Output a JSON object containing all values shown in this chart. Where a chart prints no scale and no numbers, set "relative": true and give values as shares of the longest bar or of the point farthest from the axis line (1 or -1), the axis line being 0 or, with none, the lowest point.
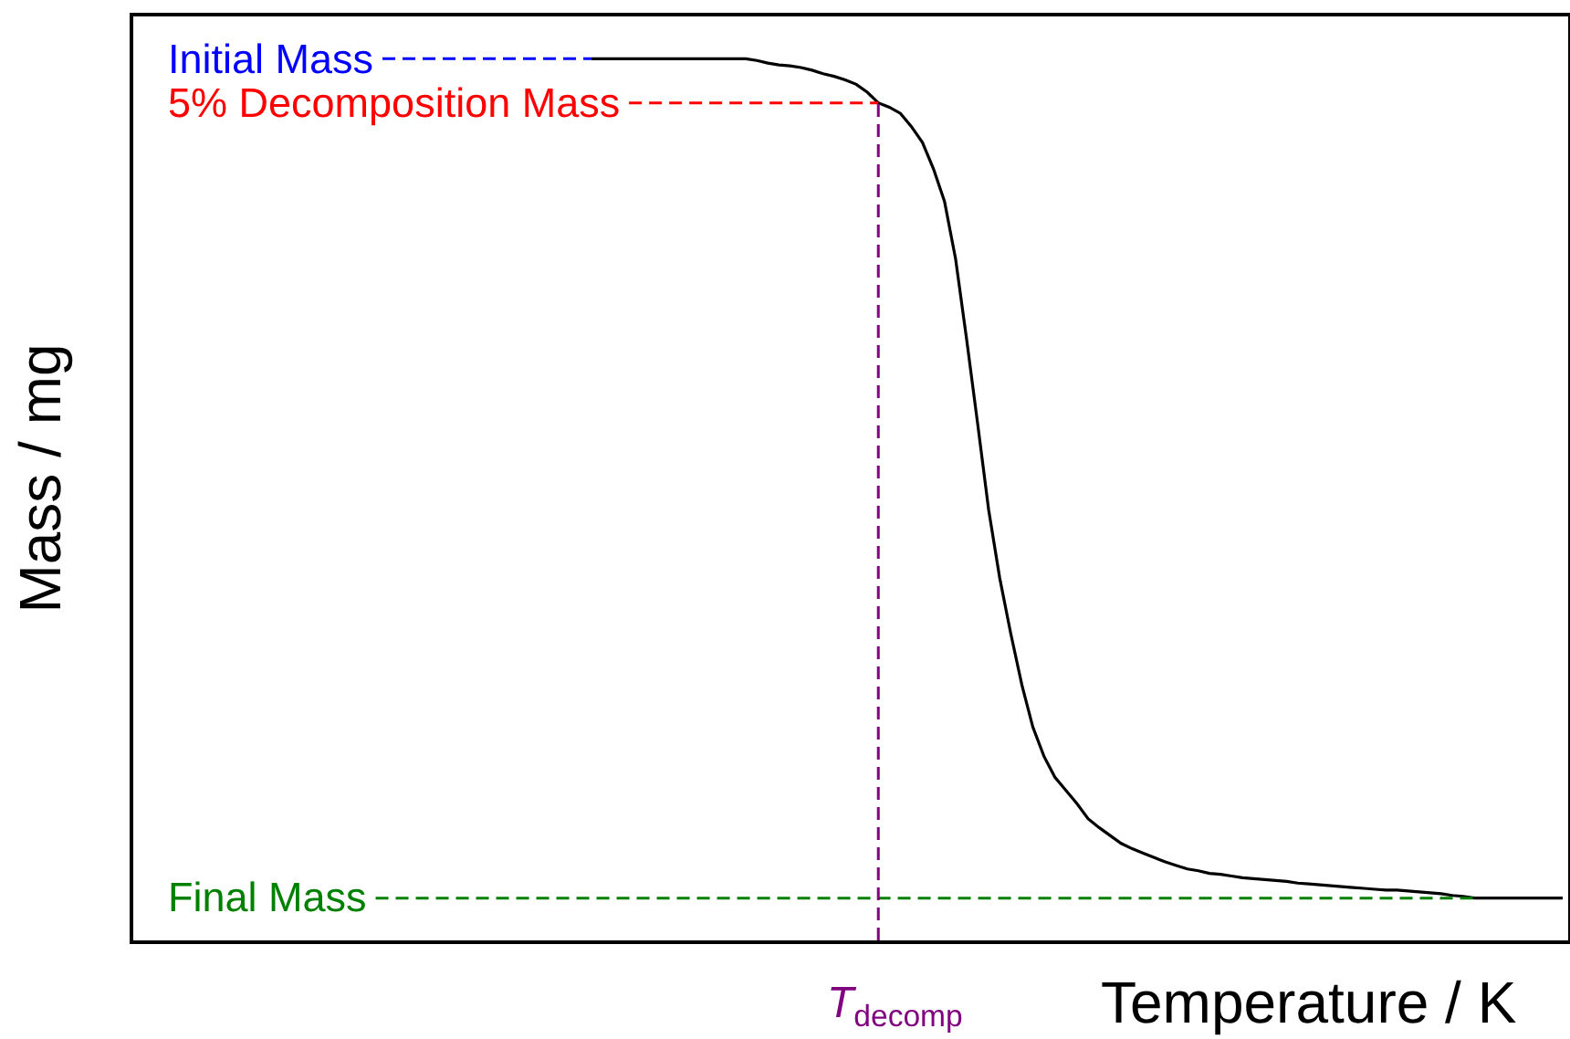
{
  "chart_data": {
    "type": "line",
    "xlabel": "Temperature / K",
    "ylabel": "Mass / mg",
    "relative": true,
    "categories": [
      null,
      null,
      null,
      null,
      null,
      null,
      null,
      null,
      null,
      null,
      null,
      null,
      null,
      null,
      null,
      null,
      null,
      null,
      null,
      null,
      null,
      null,
      null,
      null,
      null,
      null,
      null,
      null,
      null,
      null,
      null,
      null,
      null,
      null,
      null,
      null,
      null,
      null,
      null,
      null,
      null,
      null,
      null,
      null,
      null,
      null,
      null,
      null,
      null,
      null,
      null,
      null,
      null,
      null,
      null,
      null,
      null,
      null,
      null,
      null,
      null,
      null,
      null,
      null,
      null,
      null,
      null,
      null,
      null,
      null,
      null,
      null,
      null,
      null,
      null,
      null,
      null,
      null,
      null,
      null,
      null,
      null,
      null,
      null,
      null,
      null,
      null,
      null,
      null,
      null,
      null,
      null,
      null,
      null,
      null,
      null,
      null,
      null,
      null,
      null,
      null,
      null,
      null,
      null,
      null,
      null,
      null,
      null,
      null,
      null,
      null,
      null,
      null,
      null,
      null,
      null,
      null,
      null,
      null,
      null,
      null,
      null,
      null,
      null,
      null,
      null,
      null,
      null,
      null,
      null
    ],
    "series": [
      {
        "color": "#000000",
        "values": [
          null,
          null,
          null,
          null,
          null,
          null,
          null,
          null,
          null,
          null,
          null,
          null,
          null,
          null,
          null,
          null,
          null,
          null,
          null,
          null,
          null,
          null,
          null,
          null,
          null,
          null,
          null,
          null,
          null,
          null,
          null,
          null,
          null,
          null,
          null,
          null,
          null,
          null,
          null,
          null,
          null,
          1,
          1,
          1,
          1,
          1,
          1,
          1,
          1,
          1,
          1,
          1,
          1,
          1,
          1,
          1,
          0.998,
          0.995,
          0.993,
          0.992,
          0.99,
          0.987,
          0.983,
          0.98,
          0.976,
          0.971,
          0.962,
          0.95,
          0.945,
          0.938,
          0.923,
          0.905,
          0.875,
          0.838,
          0.773,
          0.682,
          0.586,
          0.488,
          0.411,
          0.348,
          0.29,
          0.242,
          0.209,
          0.185,
          0.17,
          0.155,
          0.138,
          0.128,
          0.119,
          0.11,
          0.104,
          0.099,
          0.094,
          0.089,
          0.085,
          0.081,
          0.079,
          0.076,
          0.075,
          0.073,
          0.071,
          0.07,
          0.069,
          0.068,
          0.067,
          0.065,
          0.064,
          0.063,
          0.062,
          0.061,
          0.06,
          0.059,
          0.058,
          0.057,
          0.057,
          0.056,
          0.055,
          0.054,
          0.053,
          0.051,
          0.05,
          0.048,
          0.048,
          0.048,
          0.048,
          0.048,
          0.048,
          0.048,
          0.048,
          0.048
        ]
      }
    ],
    "ref_lines": [
      {
        "axis": "y",
        "value": 1,
        "label": "Initial Mass",
        "color": "#0000ff",
        "line_style": "dashed"
      },
      {
        "axis": "y",
        "value": 0.95,
        "label": "5% Decomposition Mass",
        "color": "#ff0000",
        "line_style": "dashed"
      },
      {
        "axis": "y",
        "value": 0.048,
        "label": "Final Mass",
        "color": "#008000",
        "line_style": "dashed"
      }
    ],
    "annotations": [
      "T$_{decomp}$"
    ]
  }
}
